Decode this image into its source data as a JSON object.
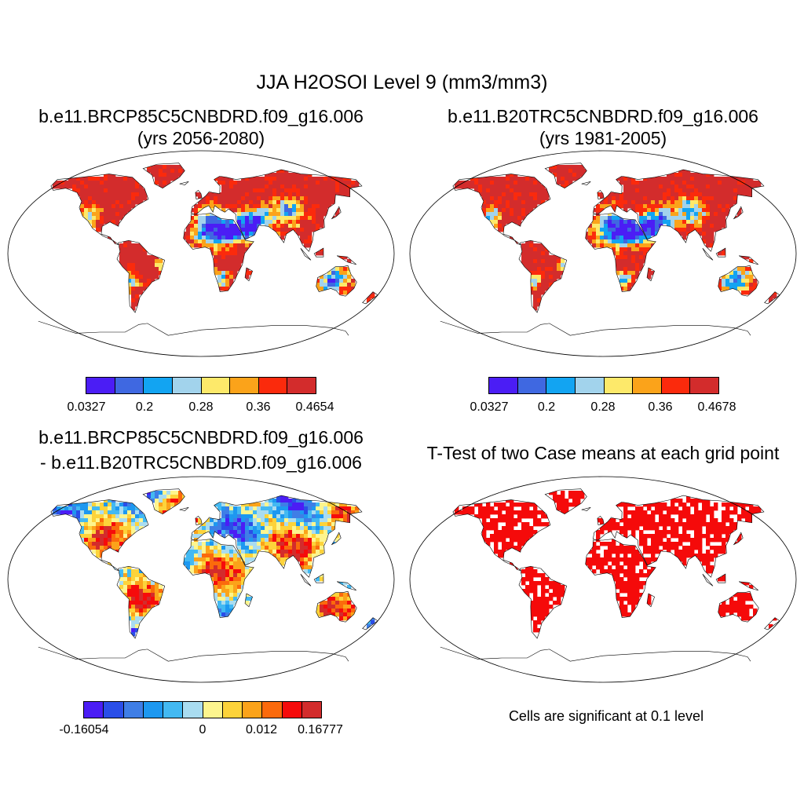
{
  "main_title": "JJA H2OSOI Level 9 (mm3/mm3)",
  "panels": [
    {
      "title_line1": "b.e11.BRCP85C5CNBDRD.f09_g16.006",
      "title_line2": "(yrs 2056-2080)",
      "colorbar": {
        "colors": [
          "#4b1df5",
          "#3f68e1",
          "#12a4f2",
          "#a2d3ec",
          "#fde96a",
          "#fba31a",
          "#fb2a0c",
          "#d32c2c"
        ],
        "labels": [
          "0.0327",
          "0.2",
          "0.28",
          "0.36",
          "0.4654"
        ]
      }
    },
    {
      "title_line1": "b.e11.B20TRC5CNBDRD.f09_g16.006",
      "title_line2": "(yrs 1981-2005)",
      "colorbar": {
        "colors": [
          "#4b1df5",
          "#3f68e1",
          "#12a4f2",
          "#a2d3ec",
          "#fde96a",
          "#fba31a",
          "#fb2a0c",
          "#d32c2c"
        ],
        "labels": [
          "0.0327",
          "0.2",
          "0.28",
          "0.36",
          "0.4678"
        ]
      }
    },
    {
      "title_line1": "b.e11.BRCP85C5CNBDRD.f09_g16.006",
      "title_line2": "- b.e11.B20TRC5CNBDRD.f09_g16.006",
      "colorbar": {
        "colors": [
          "#4b1df5",
          "#2a4ee8",
          "#3f7ee6",
          "#1d98f0",
          "#43b9f2",
          "#a9dcf0",
          "#fdf58e",
          "#fdd33a",
          "#fba31a",
          "#fb6a0c",
          "#f60b0b",
          "#d32c2c"
        ],
        "labels": [
          "-0.16054",
          "0",
          "0.012",
          "0.16777"
        ]
      }
    },
    {
      "title_line1": "T-Test of two Case means at each grid point",
      "note": "Cells are significant at 0.1 level",
      "color": "#f50a0a"
    }
  ]
}
